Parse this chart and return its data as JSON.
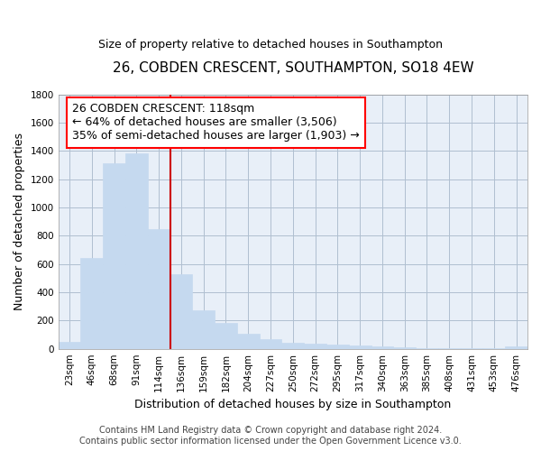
{
  "title": "26, COBDEN CRESCENT, SOUTHAMPTON, SO18 4EW",
  "subtitle": "Size of property relative to detached houses in Southampton",
  "xlabel": "Distribution of detached houses by size in Southampton",
  "ylabel": "Number of detached properties",
  "footer_line1": "Contains HM Land Registry data © Crown copyright and database right 2024.",
  "footer_line2": "Contains public sector information licensed under the Open Government Licence v3.0.",
  "annotation_line1": "26 COBDEN CRESCENT: 118sqm",
  "annotation_line2": "← 64% of detached houses are smaller (3,506)",
  "annotation_line3": "35% of semi-detached houses are larger (1,903) →",
  "bar_color": "#c5d9ef",
  "bar_edge_color": "#c5d9ef",
  "line_color": "#cc0000",
  "background_color": "#ffffff",
  "axes_bg_color": "#e8eff8",
  "grid_color": "#b0bfd0",
  "categories": [
    "23sqm",
    "46sqm",
    "68sqm",
    "91sqm",
    "114sqm",
    "136sqm",
    "159sqm",
    "182sqm",
    "204sqm",
    "227sqm",
    "250sqm",
    "272sqm",
    "295sqm",
    "317sqm",
    "340sqm",
    "363sqm",
    "385sqm",
    "408sqm",
    "431sqm",
    "453sqm",
    "476sqm"
  ],
  "values": [
    50,
    640,
    1310,
    1380,
    845,
    530,
    275,
    185,
    105,
    65,
    40,
    35,
    30,
    25,
    15,
    10,
    7,
    5,
    5,
    4,
    15
  ],
  "red_line_x": 4.5,
  "ylim": [
    0,
    1800
  ],
  "yticks": [
    0,
    200,
    400,
    600,
    800,
    1000,
    1200,
    1400,
    1600,
    1800
  ],
  "title_fontsize": 11,
  "subtitle_fontsize": 9,
  "ylabel_fontsize": 9,
  "xlabel_fontsize": 9,
  "tick_fontsize": 7.5,
  "footer_fontsize": 7,
  "annotation_fontsize": 9
}
